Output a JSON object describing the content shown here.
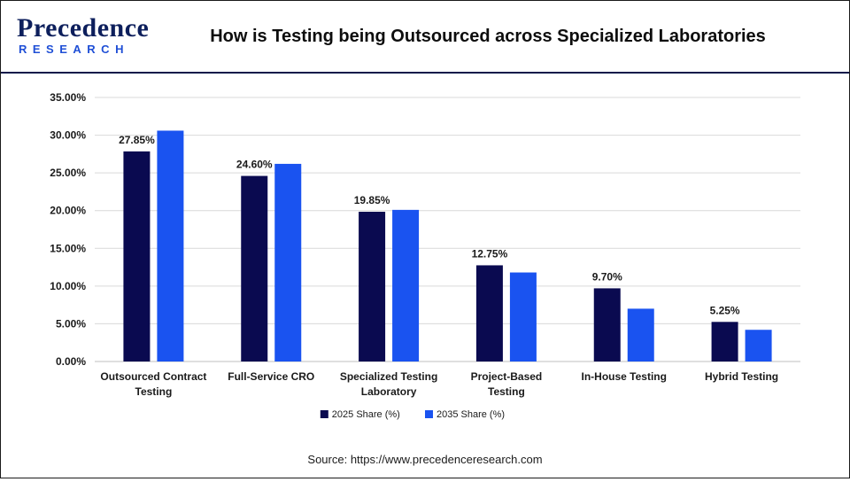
{
  "header": {
    "logo_top": "Precedence",
    "logo_bottom": "RESEARCH",
    "title": "How is Testing being Outsourced across Specialized Laboratories"
  },
  "chart_data": {
    "type": "bar",
    "categories": [
      [
        "Outsourced Contract",
        "Testing"
      ],
      [
        "Full-Service CRO"
      ],
      [
        "Specialized Testing",
        "Laboratory"
      ],
      [
        "Project-Based",
        "Testing"
      ],
      [
        "In-House Testing"
      ],
      [
        "Hybrid Testing"
      ]
    ],
    "series": [
      {
        "name": "2025 Share (%)",
        "color": "#0a0a50",
        "values": [
          27.85,
          24.6,
          19.85,
          12.75,
          9.7,
          5.25
        ],
        "labels": [
          "27.85%",
          "24.60%",
          "19.85%",
          "12.75%",
          "9.70%",
          "5.25%"
        ]
      },
      {
        "name": "2035 Share (%)",
        "color": "#1a53f0",
        "values": [
          30.6,
          26.2,
          20.1,
          11.8,
          7.0,
          4.2
        ]
      }
    ],
    "ylim": [
      0,
      35
    ],
    "yticks": [
      "0.00%",
      "5.00%",
      "10.00%",
      "15.00%",
      "20.00%",
      "25.00%",
      "30.00%",
      "35.00%"
    ],
    "grid": true,
    "legend": "bottom",
    "source": "Source: https://www.precedenceresearch.com"
  }
}
